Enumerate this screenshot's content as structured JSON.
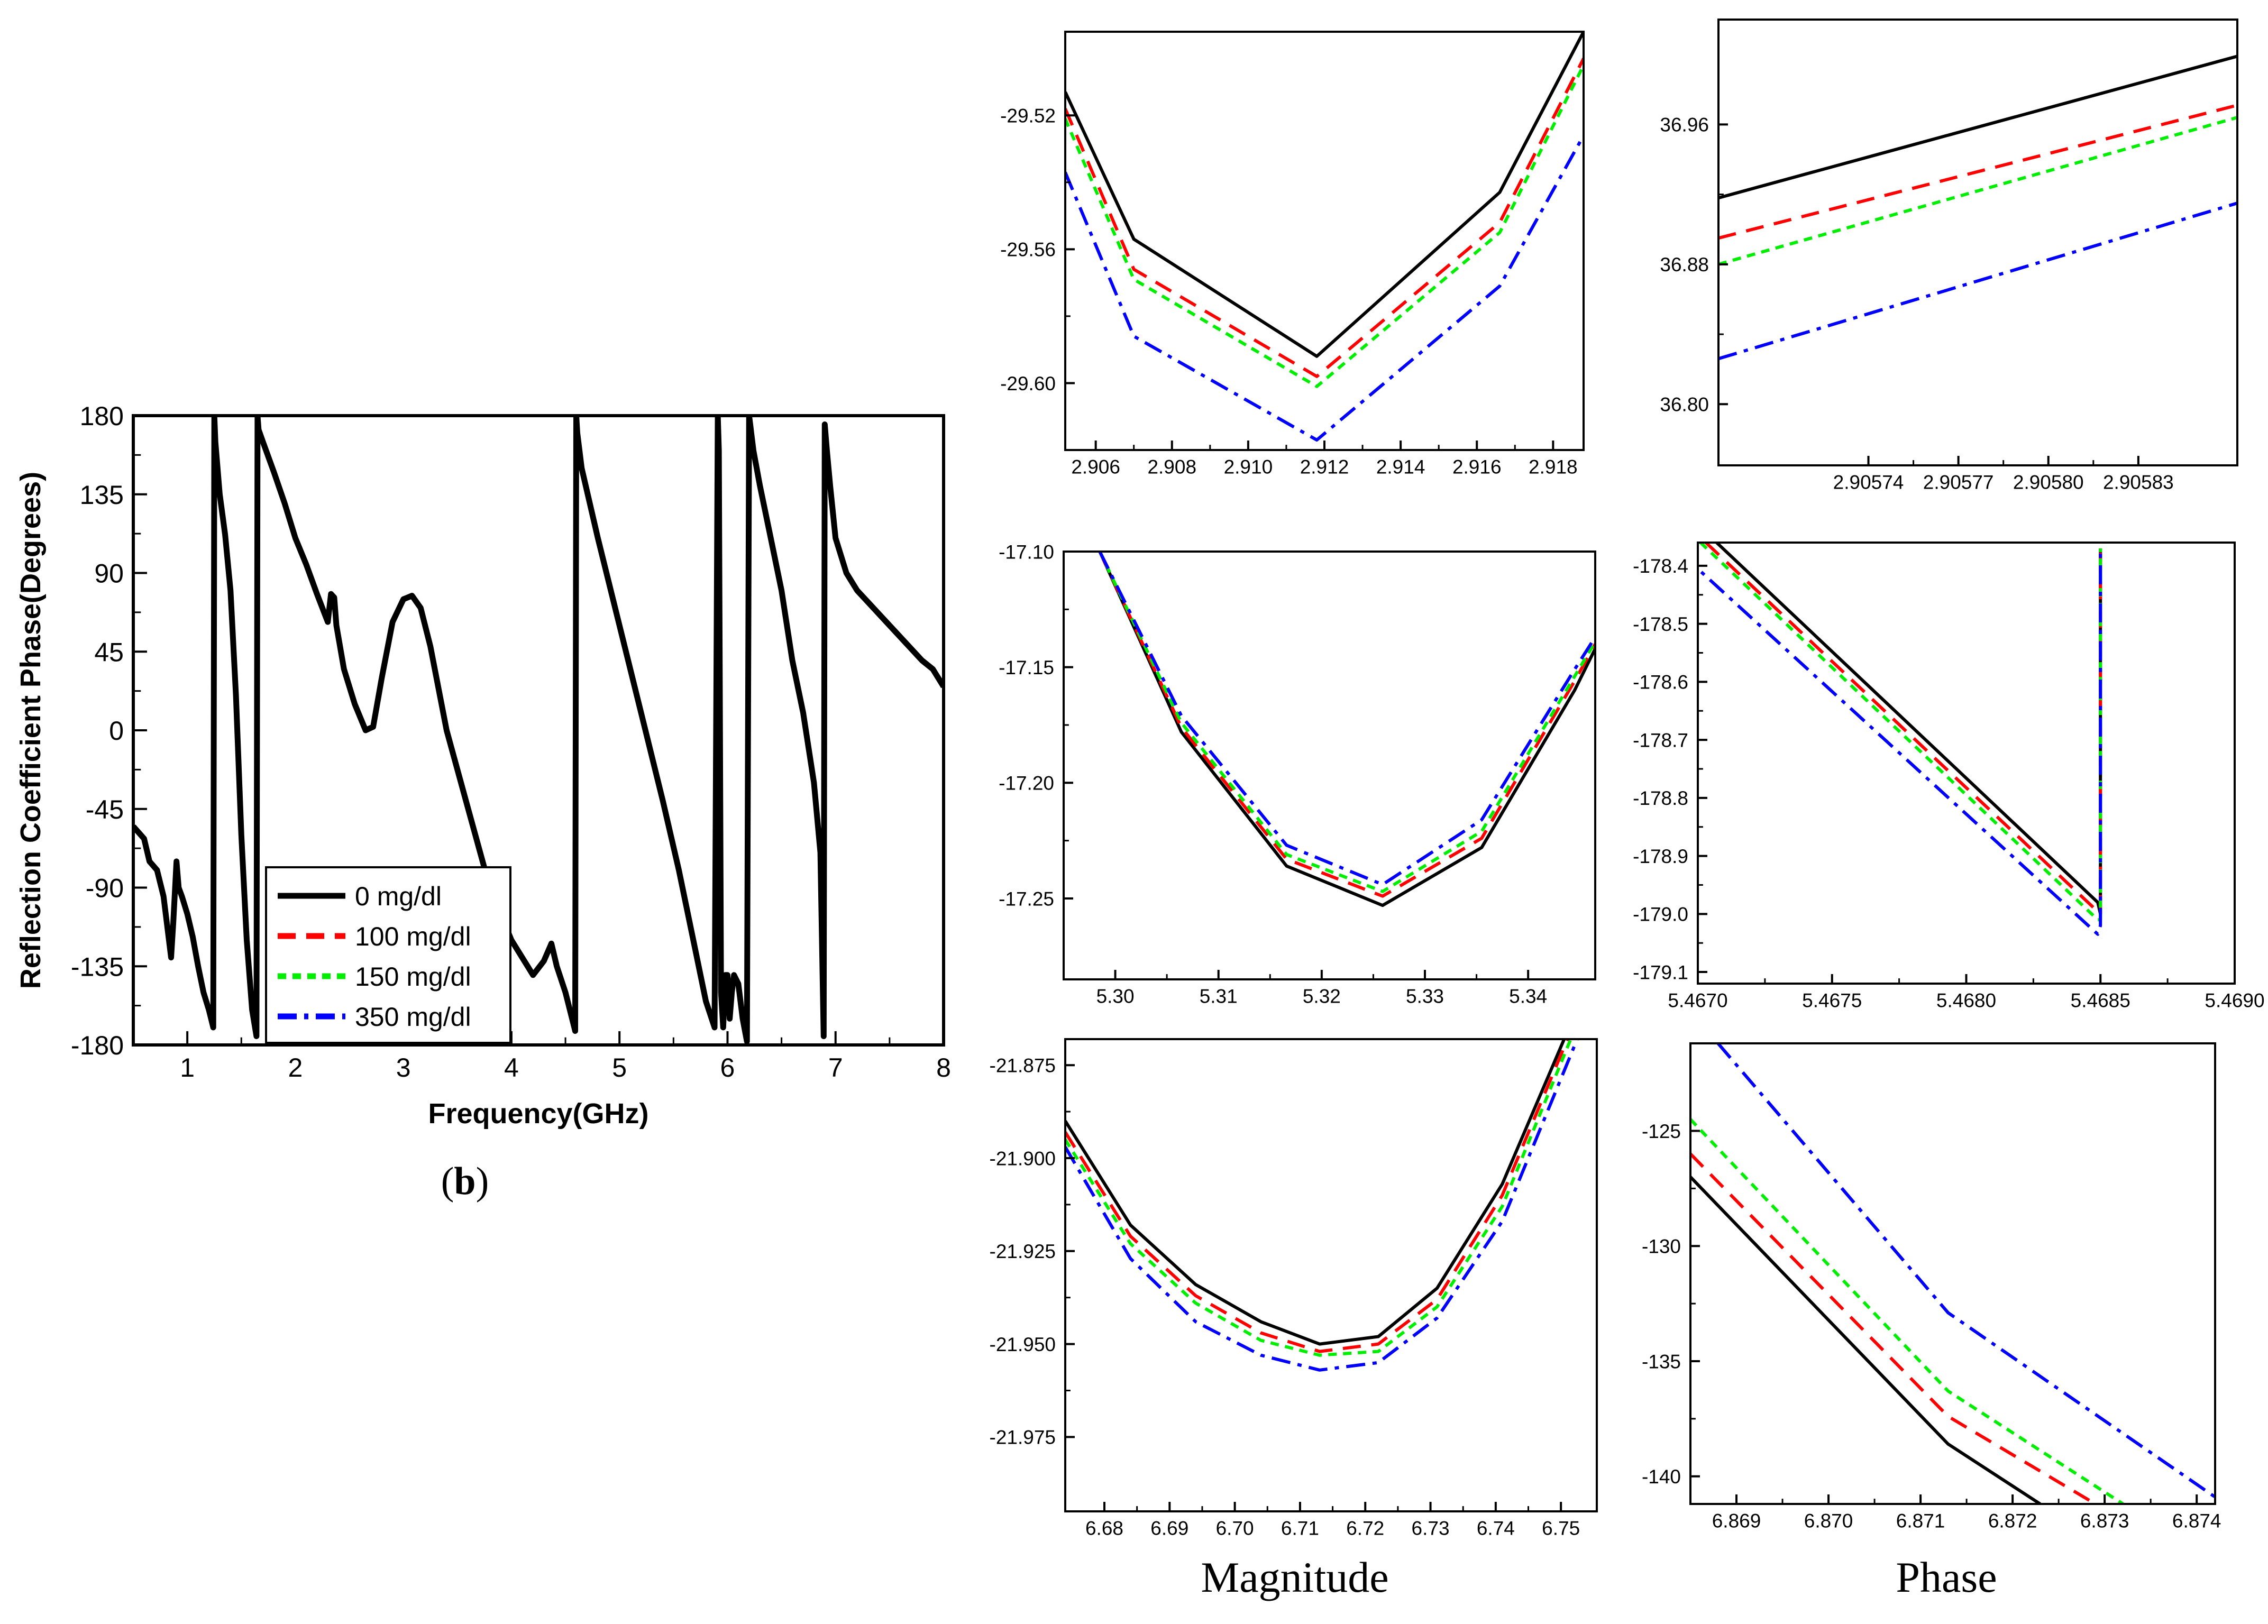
{
  "colors": {
    "c0": "#000000",
    "c100": "#ff0000",
    "c150": "#00ee00",
    "c350": "#0000ff",
    "frame": "#000000"
  },
  "captions": {
    "b_open": "(",
    "b_letter": "b",
    "b_close": ")",
    "magnitude": "Magnitude",
    "phase": "Phase"
  },
  "chart_data": [
    {
      "id": "main",
      "type": "line",
      "title": "",
      "xlabel": "Frequency(GHz)",
      "ylabel": "Reflection Coefficient Phase(Degrees)",
      "xlim": [
        0.5,
        8
      ],
      "ylim": [
        -180,
        180
      ],
      "xticks": [
        1,
        2,
        3,
        4,
        5,
        6,
        7,
        8
      ],
      "xtick_labels": [
        "1",
        "2",
        "3",
        "4",
        "5",
        "6",
        "7",
        "8"
      ],
      "yticks": [
        180,
        135,
        90,
        45,
        0,
        -45,
        -90,
        -135,
        -180
      ],
      "ytick_labels": [
        "180",
        "135",
        "90",
        "45",
        "0",
        "-45",
        "-90",
        "-135",
        "-180"
      ],
      "legend": {
        "position": "lower-left",
        "entries": [
          "0 mg/dl",
          "100 mg/dl",
          "150 mg/dl",
          "350 mg/dl"
        ]
      },
      "series": [
        {
          "name": "0 mg/dl",
          "x": [
            0.5,
            0.6,
            0.65,
            0.72,
            0.78,
            0.85,
            0.87,
            0.9,
            0.92,
            0.95,
            1.0,
            1.05,
            1.1,
            1.15,
            1.2,
            1.24,
            1.25,
            1.26,
            1.28,
            1.3,
            1.35,
            1.4,
            1.45,
            1.5,
            1.55,
            1.6,
            1.64,
            1.65,
            1.66,
            1.7,
            1.8,
            1.9,
            2.0,
            2.1,
            2.2,
            2.3,
            2.33,
            2.36,
            2.38,
            2.45,
            2.55,
            2.65,
            2.72,
            2.8,
            2.9,
            3.0,
            3.08,
            3.16,
            3.25,
            3.4,
            3.6,
            3.8,
            4.0,
            4.2,
            4.3,
            4.37,
            4.42,
            4.5,
            4.59,
            4.6,
            4.61,
            4.65,
            4.8,
            5.0,
            5.2,
            5.4,
            5.55,
            5.7,
            5.8,
            5.88,
            5.91,
            5.92,
            5.94,
            5.96,
            5.98,
            6.0,
            6.02,
            6.04,
            6.06,
            6.1,
            6.14,
            6.18,
            6.2,
            6.21,
            6.22,
            6.24,
            6.3,
            6.4,
            6.5,
            6.6,
            6.7,
            6.8,
            6.86,
            6.88,
            6.89,
            6.9,
            6.92,
            6.95,
            7.0,
            7.1,
            7.2,
            7.35,
            7.5,
            7.65,
            7.8,
            7.9,
            8.0
          ],
          "y": [
            -55,
            -62,
            -75,
            -80,
            -95,
            -130,
            -110,
            -75,
            -90,
            -95,
            -105,
            -118,
            -135,
            -150,
            -160,
            -170,
            180,
            165,
            150,
            135,
            112,
            80,
            20,
            -60,
            -120,
            -160,
            -175,
            180,
            172,
            165,
            148,
            130,
            110,
            95,
            78,
            62,
            78,
            76,
            60,
            35,
            15,
            0,
            2,
            30,
            62,
            75,
            77,
            70,
            48,
            0,
            -45,
            -90,
            -120,
            -140,
            -132,
            -122,
            -135,
            -150,
            -172,
            180,
            170,
            150,
            110,
            60,
            10,
            -40,
            -80,
            -125,
            -155,
            -170,
            180,
            160,
            -150,
            -170,
            -140,
            -140,
            -165,
            -150,
            -140,
            -145,
            -165,
            -178,
            180,
            175,
            170,
            160,
            140,
            110,
            80,
            40,
            10,
            -30,
            -70,
            -140,
            -175,
            175,
            160,
            140,
            110,
            90,
            80,
            70,
            60,
            50,
            40,
            35,
            25
          ]
        }
      ]
    },
    {
      "id": "inset-1-1",
      "type": "line",
      "xlim": [
        2.9052,
        2.9188
      ],
      "ylim": [
        -29.62,
        -29.495
      ],
      "xticks": [
        2.906,
        2.908,
        2.91,
        2.912,
        2.914,
        2.916,
        2.918
      ],
      "xtick_labels": [
        "2.906",
        "2.908",
        "2.910",
        "2.912",
        "2.914",
        "2.916",
        "2.918"
      ],
      "yticks": [
        -29.52,
        -29.56,
        -29.6
      ],
      "ytick_labels": [
        "-29.52",
        "-29.56",
        "-29.60"
      ],
      "series": [
        {
          "name": "0 mg/dl",
          "x": [
            2.9052,
            2.907,
            2.9118,
            2.9166,
            2.9188
          ],
          "y": [
            -29.513,
            -29.557,
            -29.592,
            -29.543,
            -29.495
          ]
        },
        {
          "name": "100 mg/dl",
          "x": [
            2.9052,
            2.907,
            2.9118,
            2.9166,
            2.9188
          ],
          "y": [
            -29.518,
            -29.566,
            -29.598,
            -29.552,
            -29.503
          ]
        },
        {
          "name": "150 mg/dl",
          "x": [
            2.9052,
            2.907,
            2.9118,
            2.9166,
            2.9188
          ],
          "y": [
            -29.521,
            -29.569,
            -29.601,
            -29.555,
            -29.505
          ]
        },
        {
          "name": "350 mg/dl",
          "x": [
            2.9052,
            2.907,
            2.9118,
            2.9166,
            2.9188
          ],
          "y": [
            -29.537,
            -29.586,
            -29.617,
            -29.571,
            -29.526
          ]
        }
      ]
    },
    {
      "id": "inset-1-2",
      "type": "line",
      "xlim": [
        2.90569,
        2.905863
      ],
      "ylim": [
        36.765,
        37.02
      ],
      "xticks": [
        2.90574,
        2.90577,
        2.9058,
        2.90583
      ],
      "xtick_labels": [
        "2.90574",
        "2.90577",
        "2.90580",
        "2.90583"
      ],
      "yticks": [
        36.96,
        36.88,
        36.8
      ],
      "ytick_labels": [
        "36.96",
        "36.88",
        "36.80"
      ],
      "series": [
        {
          "name": "0 mg/dl",
          "x": [
            2.90569,
            2.905863
          ],
          "y": [
            36.918,
            36.999
          ]
        },
        {
          "name": "100 mg/dl",
          "x": [
            2.90569,
            2.905863
          ],
          "y": [
            36.895,
            36.971
          ]
        },
        {
          "name": "150 mg/dl",
          "x": [
            2.90569,
            2.905863
          ],
          "y": [
            36.88,
            36.964
          ]
        },
        {
          "name": "350 mg/dl",
          "x": [
            2.90569,
            2.905863
          ],
          "y": [
            36.826,
            36.915
          ]
        }
      ]
    },
    {
      "id": "inset-2-1",
      "type": "line",
      "xlim": [
        5.295,
        5.3465
      ],
      "ylim": [
        -17.285,
        -17.1
      ],
      "xticks": [
        5.3,
        5.31,
        5.32,
        5.33,
        5.34
      ],
      "xtick_labels": [
        "5.30",
        "5.31",
        "5.32",
        "5.33",
        "5.34"
      ],
      "yticks": [
        -17.1,
        -17.15,
        -17.2,
        -17.25
      ],
      "ytick_labels": [
        "-17.10",
        "-17.15",
        "-17.20",
        "-17.25"
      ],
      "series": [
        {
          "name": "0 mg/dl",
          "x": [
            5.2985,
            5.3064,
            5.3166,
            5.3259,
            5.3355,
            5.3445,
            5.3465
          ],
          "y": [
            -17.1,
            -17.178,
            -17.236,
            -17.253,
            -17.228,
            -17.16,
            -17.142
          ]
        },
        {
          "name": "100 mg/dl",
          "x": [
            5.2985,
            5.3064,
            5.3166,
            5.3259,
            5.3355,
            5.3445,
            5.3465
          ],
          "y": [
            -17.1,
            -17.176,
            -17.233,
            -17.249,
            -17.224,
            -17.156,
            -17.14
          ]
        },
        {
          "name": "150 mg/dl",
          "x": [
            5.2985,
            5.3064,
            5.3166,
            5.3259,
            5.3355,
            5.3445,
            5.3465
          ],
          "y": [
            -17.1,
            -17.174,
            -17.231,
            -17.247,
            -17.221,
            -17.154,
            -17.139
          ]
        },
        {
          "name": "350 mg/dl",
          "x": [
            5.2985,
            5.3064,
            5.3166,
            5.3259,
            5.3355,
            5.3445,
            5.3465
          ],
          "y": [
            -17.1,
            -17.171,
            -17.227,
            -17.244,
            -17.216,
            -17.151,
            -17.137
          ]
        }
      ]
    },
    {
      "id": "inset-2-2",
      "type": "line",
      "xlim": [
        5.467,
        5.469
      ],
      "ylim": [
        -179.12,
        -178.36
      ],
      "xticks": [
        5.467,
        5.4675,
        5.468,
        5.4685,
        5.469
      ],
      "xtick_labels": [
        "5.4670",
        "5.4675",
        "5.4680",
        "5.4685",
        "5.4690"
      ],
      "yticks": [
        -178.4,
        -178.5,
        -178.6,
        -178.7,
        -178.8,
        -178.9,
        -179.0,
        -179.1
      ],
      "ytick_labels": [
        "-178.4",
        "-178.5",
        "-178.6",
        "-178.7",
        "-178.8",
        "-178.9",
        "-179.0",
        "-179.1"
      ],
      "series": [
        {
          "name": "0 mg/dl",
          "x": [
            5.46707,
            5.46849,
            5.4685,
            5.4685
          ],
          "y": [
            -178.36,
            -178.98,
            -179.0,
            -178.37
          ]
        },
        {
          "name": "100 mg/dl",
          "x": [
            5.46703,
            5.46849,
            5.4685,
            5.4685
          ],
          "y": [
            -178.36,
            -178.996,
            -179.0,
            -178.37
          ]
        },
        {
          "name": "150 mg/dl",
          "x": [
            5.46701,
            5.46849,
            5.4685,
            5.4685
          ],
          "y": [
            -178.36,
            -179.01,
            -179.01,
            -178.37
          ]
        },
        {
          "name": "350 mg/dl",
          "x": [
            5.46694,
            5.46849,
            5.4685,
            5.4685
          ],
          "y": [
            -178.38,
            -179.035,
            -179.02,
            -178.37
          ]
        }
      ]
    },
    {
      "id": "inset-3-1",
      "type": "line",
      "xlim": [
        6.674,
        6.7555
      ],
      "ylim": [
        -21.995,
        -21.868
      ],
      "xticks": [
        6.68,
        6.69,
        6.7,
        6.71,
        6.72,
        6.73,
        6.74,
        6.75
      ],
      "xtick_labels": [
        "6.68",
        "6.69",
        "6.70",
        "6.71",
        "6.72",
        "6.73",
        "6.74",
        "6.75"
      ],
      "yticks": [
        -21.875,
        -21.9,
        -21.925,
        -21.95,
        -21.975
      ],
      "ytick_labels": [
        "-21.875",
        "-21.900",
        "-21.925",
        "-21.950",
        "-21.975"
      ],
      "series": [
        {
          "name": "0 mg/dl",
          "x": [
            6.674,
            6.684,
            6.694,
            6.704,
            6.713,
            6.722,
            6.731,
            6.741,
            6.7505
          ],
          "y": [
            -21.89,
            -21.918,
            -21.934,
            -21.944,
            -21.95,
            -21.948,
            -21.935,
            -21.907,
            -21.868
          ]
        },
        {
          "name": "100 mg/dl",
          "x": [
            6.674,
            6.684,
            6.694,
            6.704,
            6.713,
            6.722,
            6.731,
            6.741,
            6.751
          ],
          "y": [
            -21.893,
            -21.921,
            -21.937,
            -21.947,
            -21.952,
            -21.95,
            -21.938,
            -21.91,
            -21.868
          ]
        },
        {
          "name": "150 mg/dl",
          "x": [
            6.674,
            6.684,
            6.694,
            6.704,
            6.713,
            6.722,
            6.731,
            6.741,
            6.7515
          ],
          "y": [
            -21.895,
            -21.923,
            -21.939,
            -21.949,
            -21.953,
            -21.952,
            -21.94,
            -21.913,
            -21.868
          ]
        },
        {
          "name": "350 mg/dl",
          "x": [
            6.674,
            6.684,
            6.694,
            6.704,
            6.713,
            6.722,
            6.731,
            6.741,
            6.7525
          ],
          "y": [
            -21.897,
            -21.927,
            -21.944,
            -21.953,
            -21.957,
            -21.955,
            -21.943,
            -21.917,
            -21.868
          ]
        }
      ]
    },
    {
      "id": "inset-3-2",
      "type": "line",
      "xlim": [
        6.8685,
        6.8742
      ],
      "ylim": [
        -141.2,
        -121.2
      ],
      "xticks": [
        6.869,
        6.87,
        6.871,
        6.872,
        6.873,
        6.874
      ],
      "xtick_labels": [
        "6.869",
        "6.870",
        "6.871",
        "6.872",
        "6.873",
        "6.874"
      ],
      "yticks": [
        -125,
        -130,
        -135,
        -140
      ],
      "ytick_labels": [
        "-125",
        "-130",
        "-135",
        "-140"
      ],
      "series": [
        {
          "name": "0 mg/dl",
          "x": [
            6.8685,
            6.8713,
            6.8723
          ],
          "y": [
            -127.0,
            -138.6,
            -141.2
          ]
        },
        {
          "name": "100 mg/dl",
          "x": [
            6.8685,
            6.8713,
            6.8729
          ],
          "y": [
            -126.0,
            -137.4,
            -141.2
          ]
        },
        {
          "name": "150 mg/dl",
          "x": [
            6.8685,
            6.8713,
            6.8732
          ],
          "y": [
            -124.5,
            -136.3,
            -141.2
          ]
        },
        {
          "name": "350 mg/dl",
          "x": [
            6.8688,
            6.8713,
            6.8742
          ],
          "y": [
            -121.2,
            -132.9,
            -140.9
          ]
        }
      ]
    }
  ]
}
